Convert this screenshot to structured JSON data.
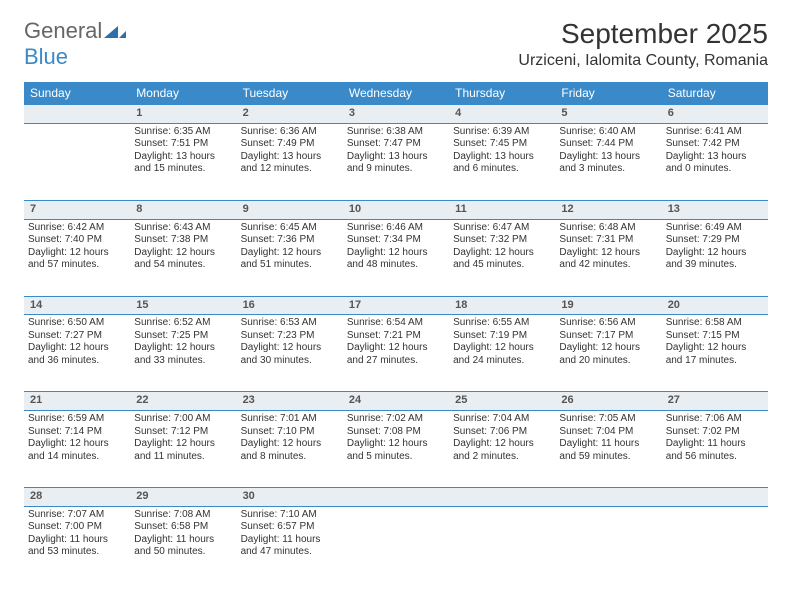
{
  "logo": {
    "line1": "General",
    "line2": "Blue"
  },
  "title": {
    "month": "September 2025",
    "location": "Urziceni, Ialomita County, Romania"
  },
  "colors": {
    "header_bg": "#3a8ac9",
    "header_fg": "#ffffff",
    "daynum_bg": "#e9eef2",
    "daynum_fg": "#555555",
    "rule": "#3a8ac9",
    "text": "#333333",
    "page_bg": "#ffffff"
  },
  "typography": {
    "title_fontsize": 28,
    "location_fontsize": 16,
    "header_fontsize": 12,
    "daynum_fontsize": 11,
    "cell_fontsize": 10,
    "font_family": "Arial"
  },
  "weekdays": [
    "Sunday",
    "Monday",
    "Tuesday",
    "Wednesday",
    "Thursday",
    "Friday",
    "Saturday"
  ],
  "first_weekday_index": 1,
  "days": [
    {
      "n": 1,
      "sunrise": "6:35 AM",
      "sunset": "7:51 PM",
      "daylight": "13 hours and 15 minutes."
    },
    {
      "n": 2,
      "sunrise": "6:36 AM",
      "sunset": "7:49 PM",
      "daylight": "13 hours and 12 minutes."
    },
    {
      "n": 3,
      "sunrise": "6:38 AM",
      "sunset": "7:47 PM",
      "daylight": "13 hours and 9 minutes."
    },
    {
      "n": 4,
      "sunrise": "6:39 AM",
      "sunset": "7:45 PM",
      "daylight": "13 hours and 6 minutes."
    },
    {
      "n": 5,
      "sunrise": "6:40 AM",
      "sunset": "7:44 PM",
      "daylight": "13 hours and 3 minutes."
    },
    {
      "n": 6,
      "sunrise": "6:41 AM",
      "sunset": "7:42 PM",
      "daylight": "13 hours and 0 minutes."
    },
    {
      "n": 7,
      "sunrise": "6:42 AM",
      "sunset": "7:40 PM",
      "daylight": "12 hours and 57 minutes."
    },
    {
      "n": 8,
      "sunrise": "6:43 AM",
      "sunset": "7:38 PM",
      "daylight": "12 hours and 54 minutes."
    },
    {
      "n": 9,
      "sunrise": "6:45 AM",
      "sunset": "7:36 PM",
      "daylight": "12 hours and 51 minutes."
    },
    {
      "n": 10,
      "sunrise": "6:46 AM",
      "sunset": "7:34 PM",
      "daylight": "12 hours and 48 minutes."
    },
    {
      "n": 11,
      "sunrise": "6:47 AM",
      "sunset": "7:32 PM",
      "daylight": "12 hours and 45 minutes."
    },
    {
      "n": 12,
      "sunrise": "6:48 AM",
      "sunset": "7:31 PM",
      "daylight": "12 hours and 42 minutes."
    },
    {
      "n": 13,
      "sunrise": "6:49 AM",
      "sunset": "7:29 PM",
      "daylight": "12 hours and 39 minutes."
    },
    {
      "n": 14,
      "sunrise": "6:50 AM",
      "sunset": "7:27 PM",
      "daylight": "12 hours and 36 minutes."
    },
    {
      "n": 15,
      "sunrise": "6:52 AM",
      "sunset": "7:25 PM",
      "daylight": "12 hours and 33 minutes."
    },
    {
      "n": 16,
      "sunrise": "6:53 AM",
      "sunset": "7:23 PM",
      "daylight": "12 hours and 30 minutes."
    },
    {
      "n": 17,
      "sunrise": "6:54 AM",
      "sunset": "7:21 PM",
      "daylight": "12 hours and 27 minutes."
    },
    {
      "n": 18,
      "sunrise": "6:55 AM",
      "sunset": "7:19 PM",
      "daylight": "12 hours and 24 minutes."
    },
    {
      "n": 19,
      "sunrise": "6:56 AM",
      "sunset": "7:17 PM",
      "daylight": "12 hours and 20 minutes."
    },
    {
      "n": 20,
      "sunrise": "6:58 AM",
      "sunset": "7:15 PM",
      "daylight": "12 hours and 17 minutes."
    },
    {
      "n": 21,
      "sunrise": "6:59 AM",
      "sunset": "7:14 PM",
      "daylight": "12 hours and 14 minutes."
    },
    {
      "n": 22,
      "sunrise": "7:00 AM",
      "sunset": "7:12 PM",
      "daylight": "12 hours and 11 minutes."
    },
    {
      "n": 23,
      "sunrise": "7:01 AM",
      "sunset": "7:10 PM",
      "daylight": "12 hours and 8 minutes."
    },
    {
      "n": 24,
      "sunrise": "7:02 AM",
      "sunset": "7:08 PM",
      "daylight": "12 hours and 5 minutes."
    },
    {
      "n": 25,
      "sunrise": "7:04 AM",
      "sunset": "7:06 PM",
      "daylight": "12 hours and 2 minutes."
    },
    {
      "n": 26,
      "sunrise": "7:05 AM",
      "sunset": "7:04 PM",
      "daylight": "11 hours and 59 minutes."
    },
    {
      "n": 27,
      "sunrise": "7:06 AM",
      "sunset": "7:02 PM",
      "daylight": "11 hours and 56 minutes."
    },
    {
      "n": 28,
      "sunrise": "7:07 AM",
      "sunset": "7:00 PM",
      "daylight": "11 hours and 53 minutes."
    },
    {
      "n": 29,
      "sunrise": "7:08 AM",
      "sunset": "6:58 PM",
      "daylight": "11 hours and 50 minutes."
    },
    {
      "n": 30,
      "sunrise": "7:10 AM",
      "sunset": "6:57 PM",
      "daylight": "11 hours and 47 minutes."
    }
  ],
  "labels": {
    "sunrise": "Sunrise:",
    "sunset": "Sunset:",
    "daylight": "Daylight:"
  }
}
